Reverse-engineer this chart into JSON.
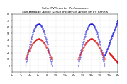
{
  "title1": "Solar PV/Inverter Performance",
  "title2": "Sun Altitude Angle & Sun Incidence Angle on PV Panels",
  "title_fontsize": 3.2,
  "tick_fontsize": 2.3,
  "blue_color": "#0000dd",
  "red_color": "#dd0000",
  "grid_color": "#bbbbbb",
  "background_color": "#ffffff",
  "ylim": [
    -10,
    80
  ],
  "xlim": [
    0,
    2880
  ],
  "yticks": [
    0,
    10,
    20,
    30,
    40,
    50,
    60,
    70,
    80
  ],
  "xtick_count": 13
}
